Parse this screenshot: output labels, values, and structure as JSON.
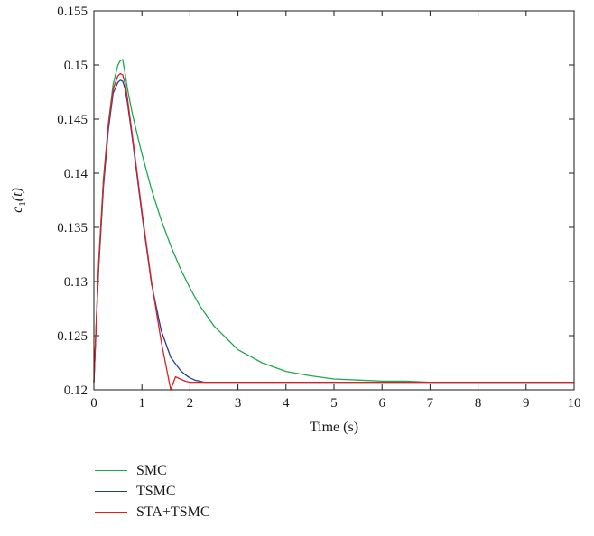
{
  "chart_data": {
    "type": "line",
    "xlabel": "Time (s)",
    "ylabel_main": "c",
    "ylabel_sub": "1",
    "ylabel_arg": "(t)",
    "xlim": [
      0,
      10
    ],
    "ylim": [
      0.12,
      0.155
    ],
    "xticks": [
      0,
      1,
      2,
      3,
      4,
      5,
      6,
      7,
      8,
      9,
      10
    ],
    "xtick_labels": [
      "0",
      "1",
      "2",
      "3",
      "4",
      "5",
      "6",
      "7",
      "8",
      "9",
      "10"
    ],
    "yticks": [
      0.12,
      0.125,
      0.13,
      0.135,
      0.14,
      0.145,
      0.15,
      0.155
    ],
    "ytick_labels": [
      "0.12",
      "0.125",
      "0.13",
      "0.135",
      "0.14",
      "0.145",
      "0.15",
      "0.155"
    ],
    "grid": false,
    "legend_position": "below",
    "series": [
      {
        "name": "SMC",
        "color": "#1fa84f",
        "x": [
          0,
          0.05,
          0.1,
          0.2,
          0.3,
          0.4,
          0.5,
          0.55,
          0.6,
          0.65,
          0.7,
          0.8,
          0.9,
          1.0,
          1.2,
          1.4,
          1.6,
          1.8,
          2.0,
          2.2,
          2.5,
          3.0,
          3.5,
          4.0,
          4.5,
          5.0,
          5.5,
          6.0,
          6.5,
          7.0,
          8.0,
          9.0,
          10.0
        ],
        "y": [
          0.1207,
          0.1265,
          0.1318,
          0.1395,
          0.1446,
          0.1482,
          0.15,
          0.1504,
          0.1505,
          0.1492,
          0.1478,
          0.1455,
          0.1436,
          0.1418,
          0.1385,
          0.1357,
          0.1333,
          0.1312,
          0.1294,
          0.1278,
          0.1259,
          0.1237,
          0.1225,
          0.1217,
          0.1213,
          0.121,
          0.1209,
          0.1208,
          0.1208,
          0.1207,
          0.1207,
          0.1207,
          0.1207
        ]
      },
      {
        "name": "TSMC",
        "color": "#1f3f9a",
        "x": [
          0,
          0.05,
          0.1,
          0.2,
          0.3,
          0.4,
          0.5,
          0.55,
          0.6,
          0.65,
          0.7,
          0.8,
          0.9,
          1.0,
          1.2,
          1.4,
          1.6,
          1.8,
          1.9,
          2.0,
          2.1,
          2.2,
          2.3,
          2.5,
          3.0,
          4.0,
          5.0,
          6.0,
          7.0,
          8.0,
          9.0,
          10.0
        ],
        "y": [
          0.1207,
          0.1262,
          0.1312,
          0.1388,
          0.144,
          0.1474,
          0.1484,
          0.1486,
          0.1485,
          0.1478,
          0.1465,
          0.1432,
          0.1397,
          0.1362,
          0.1298,
          0.1255,
          0.123,
          0.1218,
          0.1214,
          0.1211,
          0.1209,
          0.1208,
          0.1207,
          0.1207,
          0.1207,
          0.1207,
          0.1207,
          0.1207,
          0.1207,
          0.1207,
          0.1207,
          0.1207
        ]
      },
      {
        "name": "STA+TSMC",
        "color": "#e02020",
        "x": [
          0,
          0.05,
          0.1,
          0.2,
          0.3,
          0.4,
          0.5,
          0.55,
          0.6,
          0.65,
          0.7,
          0.8,
          0.9,
          1.0,
          1.2,
          1.4,
          1.6,
          1.7,
          1.8,
          1.9,
          2.0,
          2.1,
          2.2,
          2.5,
          3.0,
          4.0,
          5.0,
          6.0,
          7.0,
          8.0,
          9.0,
          10.0
        ],
        "y": [
          0.1207,
          0.1264,
          0.1316,
          0.1393,
          0.1444,
          0.1478,
          0.149,
          0.1492,
          0.1491,
          0.1483,
          0.1469,
          0.1435,
          0.14,
          0.1365,
          0.13,
          0.1245,
          0.12,
          0.1212,
          0.121,
          0.1208,
          0.1207,
          0.1207,
          0.1207,
          0.1207,
          0.1207,
          0.1207,
          0.1207,
          0.1207,
          0.1207,
          0.1207,
          0.1207,
          0.1207
        ]
      }
    ]
  }
}
